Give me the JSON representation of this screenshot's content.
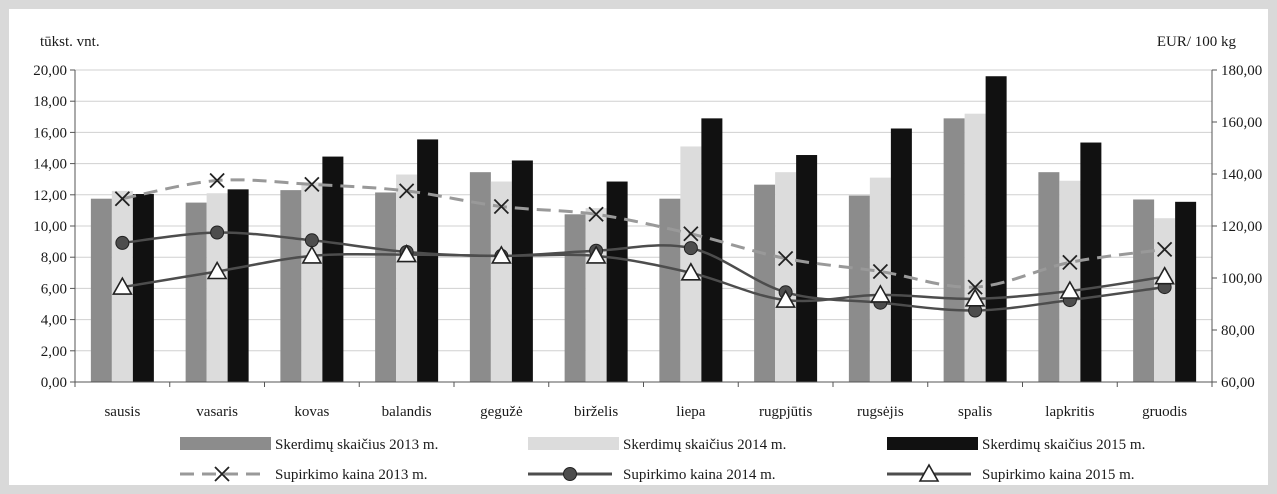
{
  "chart_data": {
    "type": "bar",
    "left_unit": "tūkst. vnt.",
    "right_unit": "EUR/ 100 kg",
    "categories": [
      "sausis",
      "vasaris",
      "kovas",
      "balandis",
      "gegužė",
      "birželis",
      "liepa",
      "rugpjūtis",
      "rugsėjis",
      "spalis",
      "lapkritis",
      "gruodis"
    ],
    "y_left": {
      "min": 0,
      "max": 20,
      "step": 2,
      "tick_labels": [
        "0,00",
        "2,00",
        "4,00",
        "6,00",
        "8,00",
        "10,00",
        "12,00",
        "14,00",
        "16,00",
        "18,00",
        "20,00"
      ]
    },
    "y_right": {
      "min": 60,
      "max": 180,
      "step": 20,
      "tick_labels": [
        "60,00",
        "80,00",
        "100,00",
        "120,00",
        "140,00",
        "160,00",
        "180,00"
      ]
    },
    "grid": true,
    "legend_position": "bottom",
    "bar_series": [
      {
        "name": "Skerdimų skaičius 2013 m.",
        "color": "#8c8c8c",
        "values": [
          11.75,
          11.5,
          12.3,
          12.15,
          13.45,
          10.75,
          11.75,
          12.65,
          11.95,
          16.9,
          13.45,
          11.7
        ]
      },
      {
        "name": "Skerdimų skaičius 2014 m.",
        "color": "#dcdcdc",
        "values": [
          12.25,
          12.1,
          12.8,
          13.3,
          12.85,
          11.15,
          15.1,
          13.45,
          13.1,
          17.2,
          12.9,
          10.5
        ]
      },
      {
        "name": "Skerdimų skaičius 2015 m.",
        "color": "#111111",
        "values": [
          12.05,
          12.35,
          14.45,
          15.55,
          14.2,
          12.85,
          16.9,
          14.55,
          16.25,
          19.6,
          15.35,
          11.55
        ]
      }
    ],
    "line_series": [
      {
        "name": "Supirkimo kaina 2013 m.",
        "color": "#999999",
        "marker": "x",
        "dashed": true,
        "values": [
          130.5,
          137.5,
          136.0,
          133.5,
          127.5,
          124.5,
          117.0,
          107.5,
          102.5,
          96.5,
          106.0,
          111.0
        ]
      },
      {
        "name": "Supirkimo kaina 2014 m.",
        "color": "#4d4d4d",
        "marker": "circle",
        "dashed": false,
        "values": [
          113.5,
          117.5,
          114.5,
          110.0,
          108.5,
          110.5,
          111.5,
          94.5,
          90.5,
          87.5,
          91.5,
          96.5
        ]
      },
      {
        "name": "Supirkimo kaina 2015 m.",
        "color": "#4d4d4d",
        "marker": "triangle",
        "dashed": false,
        "values": [
          96.5,
          102.5,
          108.5,
          109.0,
          108.5,
          108.5,
          102.0,
          91.5,
          93.5,
          92.0,
          95.0,
          100.5
        ]
      }
    ]
  }
}
